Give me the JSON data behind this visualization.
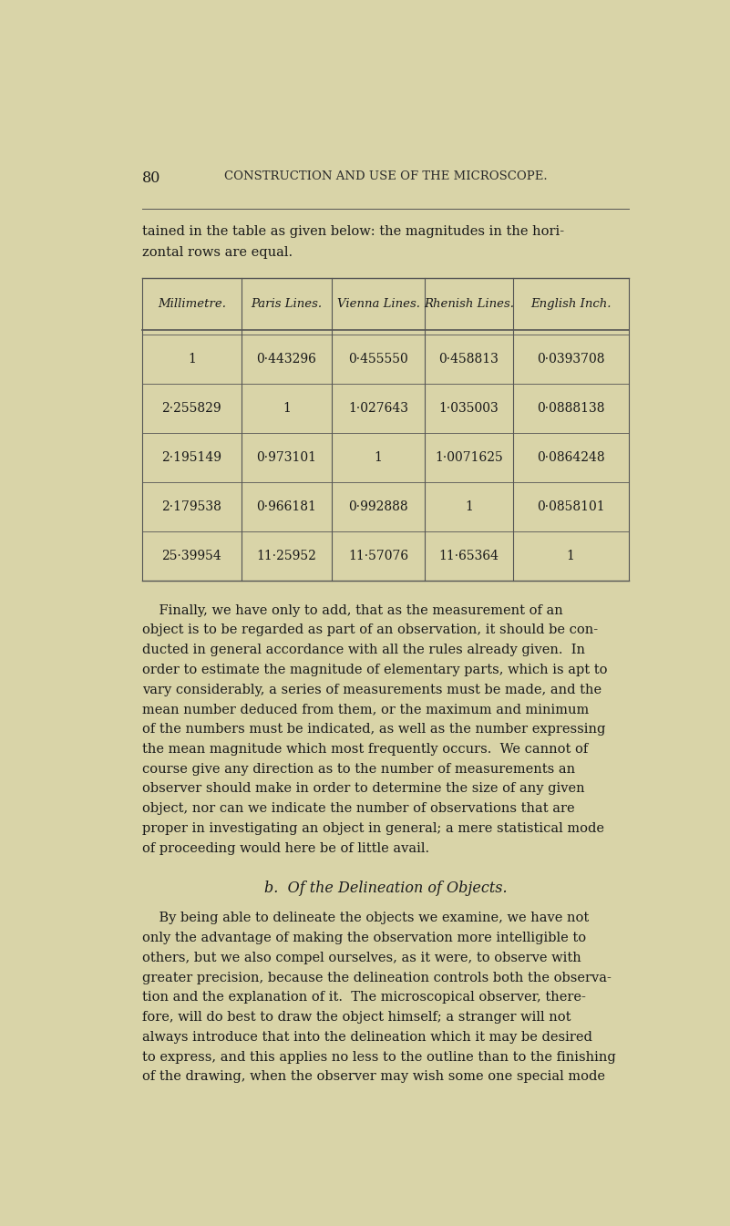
{
  "bg_color": "#d9d4a8",
  "page_number": "80",
  "header": "CONSTRUCTION AND USE OF THE MICROSCOPE.",
  "intro_text": "tained in the table as given below: the magnitudes in the hori-\nzontal rows are equal.",
  "table_headers": [
    "Millimetre.",
    "Paris Lines.",
    "Vienna Lines.",
    "Rhenish Lines.",
    "English Inch."
  ],
  "table_rows": [
    [
      "1",
      "0·443296",
      "0·455550",
      "0·458813",
      "0·0393708"
    ],
    [
      "2·255829",
      "1",
      "1·027643",
      "1·035003",
      "0·0888138"
    ],
    [
      "2·195149",
      "0·973101",
      "1",
      "1·0071625",
      "0·0864248"
    ],
    [
      "2·179538",
      "0·966181",
      "0·992888",
      "1",
      "0·0858101"
    ],
    [
      "25·39954",
      "11·25952",
      "11·57076",
      "11·65364",
      "1"
    ]
  ],
  "para1_lines": [
    "    Finally, we have only to add, that as the measurement of an",
    "object is to be regarded as part of an observation, it should be con-",
    "ducted in general accordance with all the rules already given.  In",
    "order to estimate the magnitude of elementary parts, which is apt to",
    "vary considerably, a series of measurements must be made, and the",
    "mean number deduced from them, or the maximum and minimum",
    "of the numbers must be indicated, as well as the number expressing",
    "the mean magnitude which most frequently occurs.  We cannot of",
    "course give any direction as to the number of measurements an",
    "observer should make in order to determine the size of any given",
    "object, nor can we indicate the number of observations that are",
    "proper in investigating an object in general; a mere statistical mode",
    "of proceeding would here be of little avail."
  ],
  "section_heading": "b.  Of the Delineation of Objects.",
  "para2_lines": [
    "    By being able to delineate the objects we examine, we have not",
    "only the advantage of making the observation more intelligible to",
    "others, but we also compel ourselves, as it were, to observe with",
    "greater precision, because the delineation controls both the observa-",
    "tion and the explanation of it.  The microscopical observer, there-",
    "fore, will do best to draw the object himself; a stranger will not",
    "always introduce that into the delineation which it may be desired",
    "to express, and this applies no less to the outline than to the finishing",
    "of the drawing, when the observer may wish some one special mode"
  ],
  "text_color": "#1a1a1a",
  "header_color": "#2a2a2a",
  "table_line_color": "#555555",
  "body_fontsize": 10.5,
  "header_fontsize": 9.5,
  "table_fontsize": 10.0,
  "section_fontsize": 11.5,
  "page_num_fontsize": 11.5
}
